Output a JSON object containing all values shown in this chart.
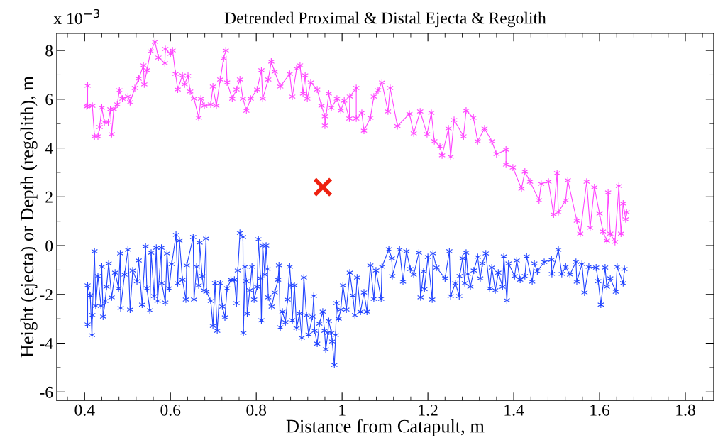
{
  "chart_data": {
    "type": "line",
    "title": "Detrended Proximal & Distal Ejecta & Regolith",
    "xlabel": "Distance from Catapult, m",
    "ylabel": "Height (ejecta) or Depth (regolith), m",
    "annotations": [
      "x 10$^{−3}$"
    ],
    "xlim": [
      0.335,
      1.866
    ],
    "ylim": [
      -6.35,
      8.7
    ],
    "xticks": [
      0.4,
      0.6,
      0.8,
      1,
      1.2,
      1.4,
      1.6,
      1.8
    ],
    "yticks": [
      -6,
      -4,
      -2,
      0,
      2,
      4,
      6,
      8
    ],
    "grid": false,
    "legend": false,
    "marker": "cross",
    "line_style": "solid",
    "series": [
      {
        "color": "#ff44ff",
        "x": [
          0.405,
          0.407,
          0.407,
          0.418,
          0.423,
          0.431,
          0.435,
          0.44,
          0.446,
          0.455,
          0.46,
          0.463,
          0.468,
          0.476,
          0.481,
          0.488,
          0.501,
          0.506,
          0.517,
          0.526,
          0.537,
          0.539,
          0.545,
          0.554,
          0.564,
          0.572,
          0.587,
          0.588,
          0.6,
          0.605,
          0.612,
          0.617,
          0.628,
          0.633,
          0.641,
          0.646,
          0.655,
          0.666,
          0.671,
          0.679,
          0.694,
          0.699,
          0.707,
          0.716,
          0.724,
          0.729,
          0.732,
          0.744,
          0.754,
          0.762,
          0.769,
          0.777,
          0.787,
          0.802,
          0.812,
          0.815,
          0.828,
          0.835,
          0.843,
          0.856,
          0.878,
          0.884,
          0.894,
          0.902,
          0.909,
          0.914,
          0.919,
          0.927,
          0.942,
          0.952,
          0.96,
          0.96,
          0.969,
          0.975,
          0.988,
          0.997,
          1.005,
          1.017,
          1.018,
          1.033,
          1.033,
          1.046,
          1.051,
          1.066,
          1.074,
          1.084,
          1.093,
          1.107,
          1.112,
          1.129,
          1.157,
          1.167,
          1.182,
          1.198,
          1.208,
          1.215,
          1.228,
          1.233,
          1.248,
          1.253,
          1.261,
          1.283,
          1.289,
          1.306,
          1.316,
          1.332,
          1.349,
          1.36,
          1.382,
          1.382,
          1.398,
          1.418,
          1.426,
          1.438,
          1.459,
          1.464,
          1.481,
          1.493,
          1.501,
          1.504,
          1.521,
          1.526,
          1.547,
          1.555,
          1.57,
          1.578,
          1.588,
          1.6,
          1.608,
          1.617,
          1.62,
          1.625,
          1.636,
          1.645,
          1.65,
          1.655,
          1.661,
          1.663
        ],
        "values": [
          5.7,
          6.55,
          5.73,
          5.73,
          4.48,
          4.48,
          4.86,
          5.65,
          5.06,
          5.06,
          5.59,
          4.57,
          5.59,
          5.79,
          6.37,
          6.02,
          6.11,
          5.88,
          6.46,
          6.84,
          7.39,
          6.61,
          7.19,
          7.97,
          8.35,
          7.71,
          7.48,
          8.06,
          7.86,
          8.0,
          7.04,
          6.4,
          6.98,
          6.61,
          6.96,
          6.32,
          6.02,
          5.24,
          6.02,
          5.73,
          5.79,
          6.52,
          5.73,
          6.81,
          7.68,
          8.0,
          6.69,
          6.02,
          6.4,
          6.81,
          6.02,
          5.53,
          6.02,
          6.4,
          7.19,
          6.02,
          6.81,
          7.54,
          7.13,
          6.52,
          7.04,
          6.11,
          7.25,
          7.39,
          6.23,
          6.98,
          6.02,
          6.69,
          6.4,
          5.73,
          5.3,
          4.92,
          6.23,
          5.65,
          6.02,
          5.53,
          5.94,
          5.21,
          6.11,
          6.46,
          5.21,
          5.44,
          4.71,
          5.24,
          6.11,
          6.37,
          6.69,
          5.5,
          6.46,
          4.9,
          5.4,
          4.6,
          5.5,
          4.57,
          5.44,
          4.28,
          4.07,
          3.7,
          4.8,
          3.64,
          5.15,
          4.48,
          5.53,
          5.24,
          4.28,
          4.8,
          4.28,
          3.75,
          3.93,
          3.32,
          3.2,
          2.33,
          3.03,
          2.62,
          1.86,
          2.53,
          2.62,
          1.28,
          2.97,
          1.37,
          1.86,
          2.68,
          1.02,
          0.49,
          2.62,
          0.73,
          2.39,
          1.31,
          0.58,
          0.2,
          2.18,
          0.49,
          0.15,
          2.44,
          0.49,
          1.72,
          1.08,
          1.37
        ]
      },
      {
        "color": "#2244ff",
        "x": [
          0.407,
          0.407,
          0.413,
          0.417,
          0.418,
          0.423,
          0.426,
          0.431,
          0.438,
          0.44,
          0.443,
          0.448,
          0.451,
          0.456,
          0.463,
          0.471,
          0.479,
          0.483,
          0.484,
          0.493,
          0.501,
          0.506,
          0.512,
          0.522,
          0.526,
          0.534,
          0.542,
          0.545,
          0.552,
          0.555,
          0.562,
          0.567,
          0.57,
          0.579,
          0.58,
          0.588,
          0.592,
          0.597,
          0.603,
          0.613,
          0.617,
          0.621,
          0.628,
          0.636,
          0.638,
          0.653,
          0.655,
          0.661,
          0.666,
          0.668,
          0.674,
          0.678,
          0.683,
          0.684,
          0.694,
          0.699,
          0.704,
          0.709,
          0.716,
          0.721,
          0.727,
          0.732,
          0.741,
          0.749,
          0.754,
          0.757,
          0.762,
          0.769,
          0.77,
          0.774,
          0.777,
          0.779,
          0.785,
          0.79,
          0.795,
          0.802,
          0.805,
          0.81,
          0.812,
          0.815,
          0.82,
          0.823,
          0.826,
          0.828,
          0.836,
          0.843,
          0.851,
          0.853,
          0.856,
          0.861,
          0.868,
          0.873,
          0.878,
          0.881,
          0.884,
          0.889,
          0.894,
          0.901,
          0.906,
          0.911,
          0.917,
          0.922,
          0.931,
          0.934,
          0.936,
          0.942,
          0.947,
          0.955,
          0.959,
          0.962,
          0.967,
          0.969,
          0.975,
          0.977,
          0.982,
          0.985,
          0.987,
          0.992,
          0.997,
          1.002,
          1.01,
          1.018,
          1.025,
          1.03,
          1.035,
          1.043,
          1.051,
          1.058,
          1.066,
          1.074,
          1.079,
          1.091,
          1.093,
          1.109,
          1.116,
          1.117,
          1.134,
          1.142,
          1.15,
          1.159,
          1.167,
          1.179,
          1.183,
          1.19,
          1.192,
          1.2,
          1.21,
          1.212,
          1.22,
          1.24,
          1.25,
          1.253,
          1.264,
          1.273,
          1.274,
          1.281,
          1.286,
          1.289,
          1.293,
          1.299,
          1.307,
          1.316,
          1.322,
          1.327,
          1.335,
          1.344,
          1.349,
          1.357,
          1.364,
          1.374,
          1.377,
          1.384,
          1.388,
          1.402,
          1.407,
          1.415,
          1.426,
          1.43,
          1.443,
          1.448,
          1.455,
          1.471,
          1.488,
          1.489,
          1.504,
          1.512,
          1.521,
          1.531,
          1.545,
          1.547,
          1.559,
          1.565,
          1.575,
          1.592,
          1.597,
          1.603,
          1.613,
          1.617,
          1.625,
          1.638,
          1.641,
          1.655,
          1.658
        ],
        "values": [
          -3.23,
          -1.63,
          -2.04,
          -3.67,
          -2.85,
          -0.23,
          -2.47,
          -1.25,
          -2.47,
          -0.87,
          -2.91,
          -2.27,
          -1.69,
          -0.73,
          -2.12,
          -1.11,
          -1.75,
          -0.32,
          -2.56,
          -1.19,
          -0.17,
          -2.62,
          -1.02,
          -1.46,
          -0.61,
          -2.42,
          -0.03,
          -1.75,
          -2.65,
          -0.29,
          -2.07,
          -0.09,
          -2.27,
          -0.09,
          -1.54,
          -2.33,
          -0.32,
          -1.75,
          -0.76,
          0.44,
          -1.54,
          0.2,
          -1.4,
          -2.21,
          -0.81,
          0.35,
          -2.21,
          -0.87,
          -1.63,
          0.12,
          -1.25,
          -1.83,
          0.29,
          -1.89,
          -2.27,
          -3.29,
          -1.54,
          -3.49,
          -1.54,
          -2.5,
          -2.94,
          -1.75,
          -1.4,
          -1.4,
          -2.36,
          -1.02,
          0.52,
          0.35,
          -3.58,
          -0.87,
          -1.46,
          -2.79,
          -1.83,
          -0.87,
          -2.21,
          -1.69,
          0.26,
          -1.34,
          -3.06,
          0.0,
          -1.19,
          0.0,
          -0.96,
          -2.12,
          -2.5,
          -1.92,
          -1.4,
          -0.81,
          -3.35,
          -2.71,
          -3.14,
          -2.21,
          -0.87,
          -1.63,
          -3.06,
          -1.63,
          -3.38,
          -2.79,
          -3.78,
          -1.31,
          -2.85,
          -3.64,
          -2.91,
          -2.07,
          -3.49,
          -4.02,
          -3.2,
          -2.71,
          -3.49,
          -4.25,
          -3.58,
          -3.09,
          -3.58,
          -3.93,
          -4.89,
          -3.67,
          -2.36,
          -3.0,
          -2.62,
          -1.63,
          -2.62,
          -1.11,
          -2.04,
          -2.85,
          -1.31,
          -2.71,
          -1.92,
          -2.71,
          -0.81,
          -2.18,
          -1.02,
          -2.18,
          -0.87,
          -0.15,
          -0.52,
          -1.25,
          -0.17,
          -1.48,
          -0.23,
          -0.96,
          -1.19,
          -0.29,
          -2.12,
          -1.05,
          -1.78,
          -0.47,
          -2.21,
          -0.32,
          -0.9,
          -1.34,
          -0.23,
          -2.07,
          -1.54,
          -2.07,
          -1.25,
          -0.52,
          -1.54,
          -0.29,
          -1.16,
          -1.69,
          -1.02,
          -0.47,
          -1.34,
          -0.73,
          -0.32,
          -1.75,
          -0.9,
          -1.83,
          -1.11,
          -1.69,
          -0.44,
          -2.24,
          -0.73,
          -1.25,
          -0.61,
          -1.4,
          -1.25,
          -0.44,
          -1.48,
          -0.73,
          -1.05,
          -0.67,
          -0.58,
          -1.16,
          -0.17,
          -1.16,
          -0.87,
          -1.19,
          -0.67,
          -1.48,
          -0.76,
          -1.92,
          -0.87,
          -0.9,
          -1.46,
          -2.42,
          -0.9,
          -1.69,
          -1.34,
          -1.89,
          -0.87,
          -1.54,
          -0.96
        ]
      },
      {
        "type": "scatter",
        "color": "#ee2211",
        "marker": "cross",
        "x": [
          0.955
        ],
        "values": [
          2.4
        ]
      }
    ]
  }
}
